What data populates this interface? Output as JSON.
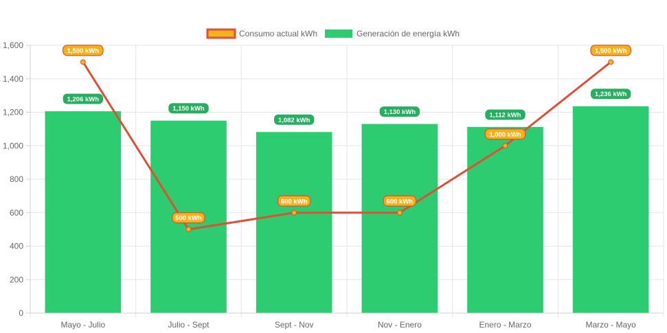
{
  "chart_data": {
    "type": "bar",
    "categories": [
      "Mayo - Julio",
      "Julio - Sept",
      "Sept - Nov",
      "Nov - Enero",
      "Enero - Marzo",
      "Marzo - Mayo"
    ],
    "ylim": [
      0,
      1600
    ],
    "yticks": [
      0,
      200,
      400,
      600,
      800,
      1000,
      1200,
      1400,
      1600
    ],
    "ytick_labels": [
      "0",
      "200",
      "400",
      "600",
      "800",
      "1,000",
      "1,200",
      "1,400",
      "1,600"
    ],
    "legend_position": "top-center",
    "grid": true,
    "series": [
      {
        "name": "Consumo actual kWh",
        "type": "line",
        "values": [
          1500,
          500,
          600,
          600,
          1000,
          1500
        ],
        "labels": [
          "1,500 kWh",
          "500 kWh",
          "600 kWh",
          "600 kWh",
          "1,000 kWh",
          "1,500 kWh"
        ],
        "line_color": "#e04e34",
        "point_color": "#f5b21b",
        "label_bg": "#f5b21b",
        "label_border": "#e04e34"
      },
      {
        "name": "Generación de energía kWh",
        "type": "bar",
        "values": [
          1206,
          1150,
          1082,
          1130,
          1112,
          1236
        ],
        "labels": [
          "1,206 kWh",
          "1,150 kWh",
          "1,082 kWh",
          "1,130 kWh",
          "1,112 kWh",
          "1,236 kWh"
        ],
        "color": "#2ecc71",
        "label_bg": "#27ae60"
      }
    ]
  }
}
